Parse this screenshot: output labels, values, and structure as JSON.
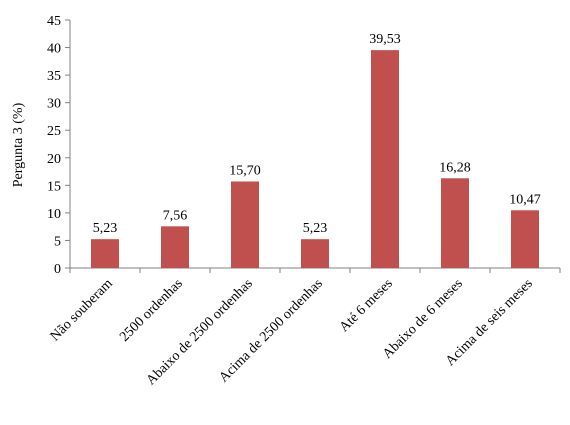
{
  "chart_data": {
    "type": "bar",
    "title": "",
    "xlabel": "",
    "ylabel": "Pergunta 3 (%)",
    "ylim": [
      0,
      45
    ],
    "yticks": [
      0,
      5,
      10,
      15,
      20,
      25,
      30,
      35,
      40,
      45
    ],
    "grid": false,
    "legend": "none",
    "bar_color": "#c0504d",
    "categories": [
      "Não souberam",
      "2500 ordenhas",
      "Abaixo de 2500 ordenhas",
      "Acima de 2500 ordenhas",
      "Até 6 meses",
      "Abaixo de 6 meses",
      "Acima de seis meses"
    ],
    "values": [
      5.23,
      7.56,
      15.7,
      5.23,
      39.53,
      16.28,
      10.47
    ],
    "value_labels": [
      "5,23",
      "7,56",
      "15,70",
      "5,23",
      "39,53",
      "16,28",
      "10,47"
    ]
  }
}
